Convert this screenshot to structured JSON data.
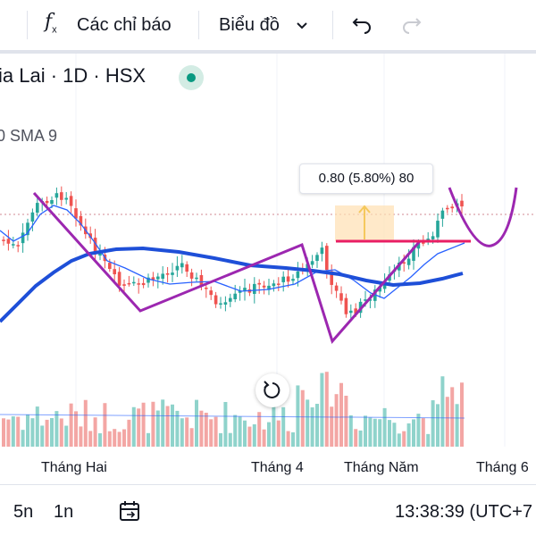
{
  "toolbar": {
    "indicators_label": "Các chỉ báo",
    "chart_type_label": "Biểu đồ",
    "icons": [
      "chevron-down-icon",
      "undo-icon",
      "redo-icon",
      "fx-icon"
    ]
  },
  "legend": {
    "symbol_title": "ia Lai · 1D · HSX",
    "sma_label": "0 SMA 9",
    "status_color": "#089981"
  },
  "measure": {
    "label": "0.80 (5.80%) 80"
  },
  "time_axis": {
    "labels": [
      "Tháng Hai",
      "Tháng 4",
      "Tháng Năm",
      "Tháng 6"
    ]
  },
  "bottom_bar": {
    "range_5n": "5n",
    "range_1n": "1n",
    "clock": "13:38:39 (UTC+7"
  },
  "colors": {
    "up": "#26a69a",
    "down": "#ef5350",
    "sma_fast": "#2962ff",
    "sma_slow": "#1e4fd8",
    "drawing": "#9c27b0",
    "hline": "#e91e63"
  }
}
